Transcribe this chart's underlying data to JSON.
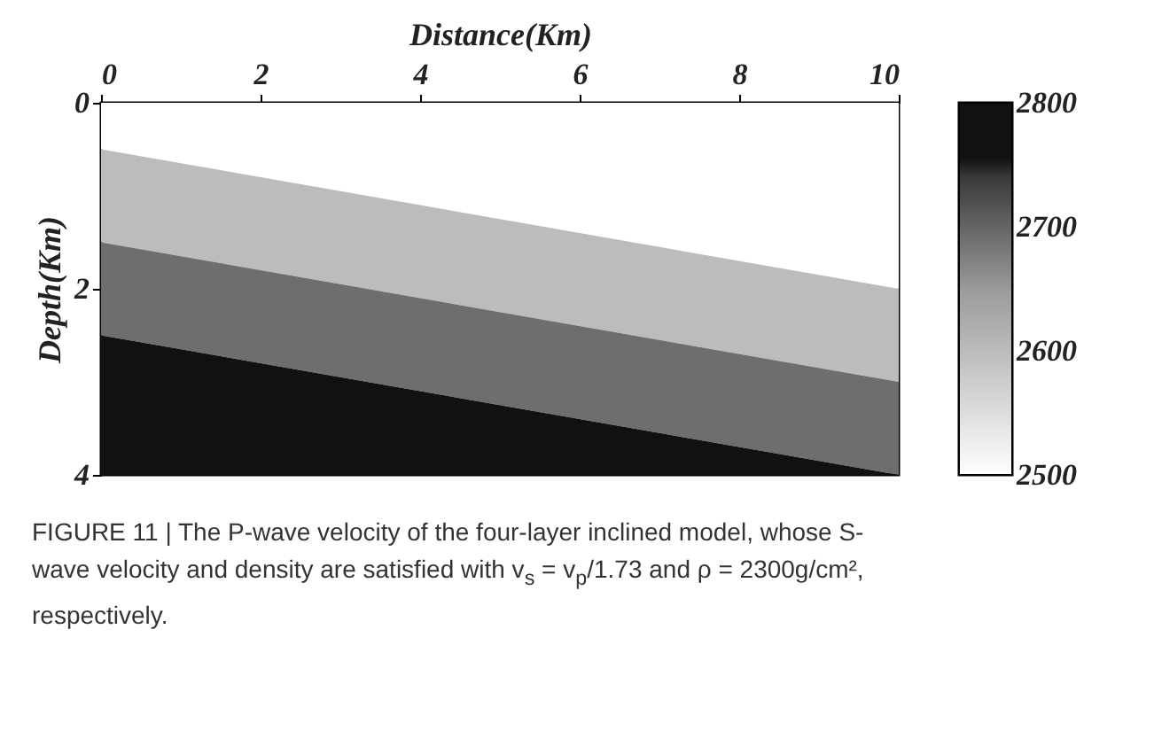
{
  "chart_data": {
    "type": "area",
    "stacked": true,
    "xlabel": "Distance(Km)",
    "ylabel": "Depth(Km)",
    "x": [
      0,
      10
    ],
    "series": [
      {
        "color": "#ffffff",
        "values": [
          0.5,
          2
        ]
      },
      {
        "color": "#bcbcbc",
        "values": [
          1,
          1
        ]
      },
      {
        "color": "#6e6e6e",
        "values": [
          1,
          1
        ]
      },
      {
        "color": "#111111",
        "values": [
          1.5,
          0
        ]
      }
    ],
    "xlim": [
      0,
      10
    ],
    "xticks": [
      0,
      2,
      4,
      6,
      8,
      10
    ],
    "ylim": [
      4,
      0
    ],
    "yticks": [
      0,
      2,
      4
    ],
    "grid": false,
    "legend": false,
    "clim": [
      2500,
      2800
    ],
    "cticks": [
      2500,
      2600,
      2700,
      2800
    ],
    "annotations": [
      "FIGURE 11 | The P-wave velocity of the four-layer inclined model, whose S-wave velocity and density are satisfied with v$_{s}$ = v$_{p}$/1.73 and ρ = 2300g/cm², respectively."
    ]
  }
}
